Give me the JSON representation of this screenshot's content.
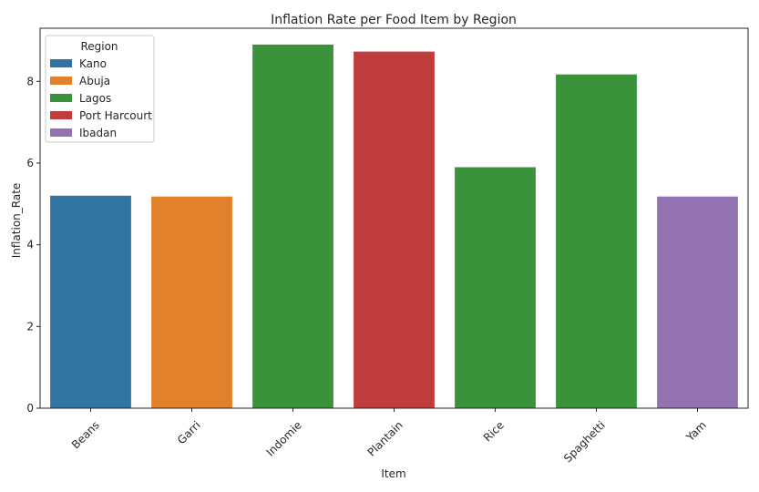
{
  "chart_data": {
    "type": "bar",
    "title": "Inflation Rate per Food Item by Region",
    "xlabel": "Item",
    "ylabel": "Inflation_Rate",
    "ylim": [
      0,
      9.3
    ],
    "yticks": [
      0,
      2,
      4,
      6,
      8
    ],
    "grid": false,
    "categories": [
      "Beans",
      "Garri",
      "Indomie",
      "Plantain",
      "Rice",
      "Spaghetti",
      "Yam"
    ],
    "values": [
      5.2,
      5.18,
      8.9,
      8.73,
      5.9,
      8.17,
      5.18
    ],
    "bar_regions": [
      "Kano",
      "Abuja",
      "Lagos",
      "Port Harcourt",
      "Lagos",
      "Lagos",
      "Ibadan"
    ],
    "legend": {
      "title": "Region",
      "placement": "top-left",
      "entries": [
        {
          "label": "Kano",
          "color": "#3274a1"
        },
        {
          "label": "Abuja",
          "color": "#e1812c"
        },
        {
          "label": "Lagos",
          "color": "#3a923a"
        },
        {
          "label": "Port Harcourt",
          "color": "#c03d3e"
        },
        {
          "label": "Ibadan",
          "color": "#9372b2"
        }
      ]
    },
    "x_tick_rotation_deg": -45
  }
}
